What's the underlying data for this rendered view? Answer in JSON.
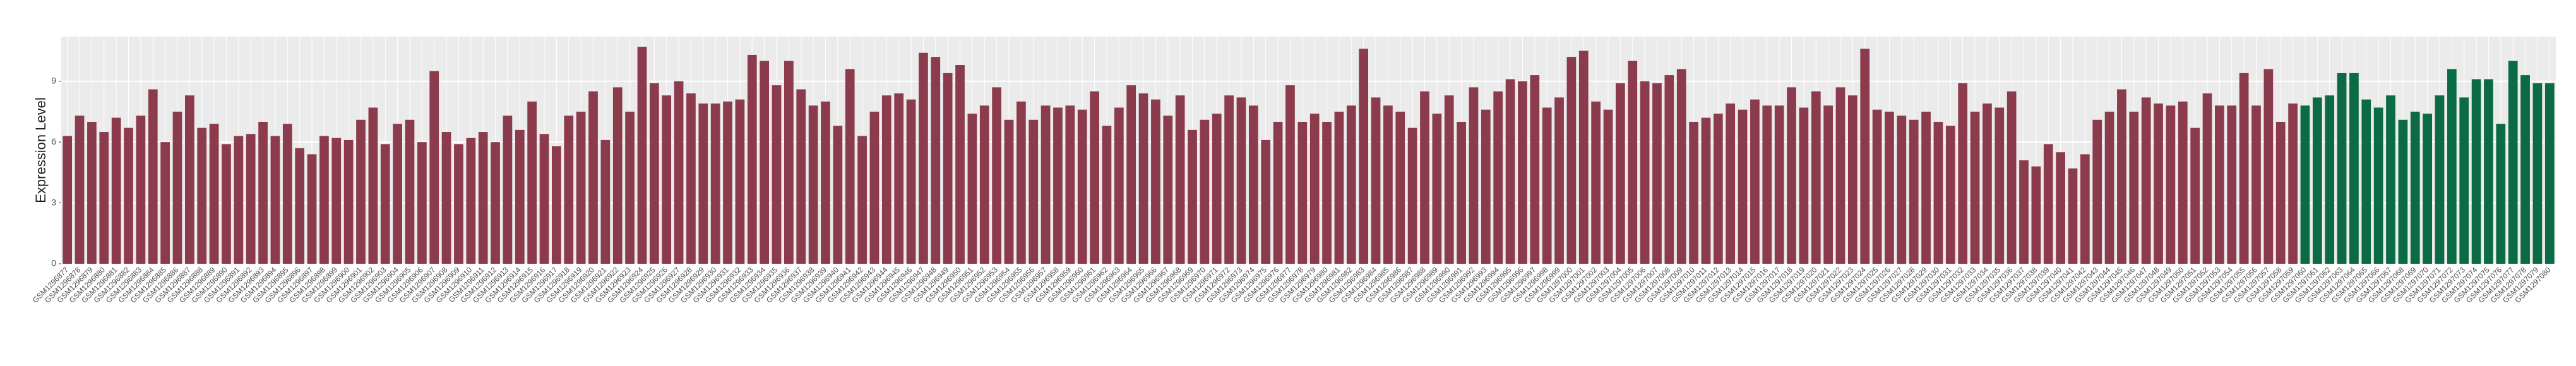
{
  "chart_data": {
    "type": "bar",
    "y_label": "Expression Level",
    "categories": [
      "GSM1296877",
      "GSM1296878",
      "GSM1296879",
      "GSM1296880",
      "GSM1296881",
      "GSM1296882",
      "GSM1296883",
      "GSM1296884",
      "GSM1296885",
      "GSM1296886",
      "GSM1296887",
      "GSM1296888",
      "GSM1296889",
      "GSM1296890",
      "GSM1296891",
      "GSM1296892",
      "GSM1296893",
      "GSM1296894",
      "GSM1296895",
      "GSM1296896",
      "GSM1296897",
      "GSM1296898",
      "GSM1296899",
      "GSM1296900",
      "GSM1296901",
      "GSM1296902",
      "GSM1296903",
      "GSM1296904",
      "GSM1296905",
      "GSM1296906",
      "GSM1296907",
      "GSM1296908",
      "GSM1296909",
      "GSM1296910",
      "GSM1296911",
      "GSM1296912",
      "GSM1296913",
      "GSM1296914",
      "GSM1296915",
      "GSM1296916",
      "GSM1296917",
      "GSM1296918",
      "GSM1296919",
      "GSM1296920",
      "GSM1296921",
      "GSM1296922",
      "GSM1296923",
      "GSM1296924",
      "GSM1296925",
      "GSM1296926",
      "GSM1296927",
      "GSM1296928",
      "GSM1296929",
      "GSM1296930",
      "GSM1296931",
      "GSM1296932",
      "GSM1296933",
      "GSM1296934",
      "GSM1296935",
      "GSM1296936",
      "GSM1296937",
      "GSM1296938",
      "GSM1296939",
      "GSM1296940",
      "GSM1296941",
      "GSM1296942",
      "GSM1296943",
      "GSM1296944",
      "GSM1296945",
      "GSM1296946",
      "GSM1296947",
      "GSM1296948",
      "GSM1296949",
      "GSM1296950",
      "GSM1296951",
      "GSM1296952",
      "GSM1296953",
      "GSM1296954",
      "GSM1296955",
      "GSM1296956",
      "GSM1296957",
      "GSM1296958",
      "GSM1296959",
      "GSM1296960",
      "GSM1296961",
      "GSM1296962",
      "GSM1296963",
      "GSM1296964",
      "GSM1296965",
      "GSM1296966",
      "GSM1296967",
      "GSM1296968",
      "GSM1296969",
      "GSM1296970",
      "GSM1296971",
      "GSM1296972",
      "GSM1296973",
      "GSM1296974",
      "GSM1296975",
      "GSM1296976",
      "GSM1296977",
      "GSM1296978",
      "GSM1296979",
      "GSM1296980",
      "GSM1296981",
      "GSM1296982",
      "GSM1296983",
      "GSM1296984",
      "GSM1296985",
      "GSM1296986",
      "GSM1296987",
      "GSM1296988",
      "GSM1296989",
      "GSM1296990",
      "GSM1296991",
      "GSM1296992",
      "GSM1296993",
      "GSM1296994",
      "GSM1296995",
      "GSM1296996",
      "GSM1296997",
      "GSM1296998",
      "GSM1296999",
      "GSM1297000",
      "GSM1297001",
      "GSM1297002",
      "GSM1297003",
      "GSM1297004",
      "GSM1297005",
      "GSM1297006",
      "GSM1297007",
      "GSM1297008",
      "GSM1297009",
      "GSM1297010",
      "GSM1297011",
      "GSM1297012",
      "GSM1297013",
      "GSM1297014",
      "GSM1297015",
      "GSM1297016",
      "GSM1297017",
      "GSM1297018",
      "GSM1297019",
      "GSM1297020",
      "GSM1297021",
      "GSM1297022",
      "GSM1297023",
      "GSM1297024",
      "GSM1297025",
      "GSM1297026",
      "GSM1297027",
      "GSM1297028",
      "GSM1297029",
      "GSM1297030",
      "GSM1297031",
      "GSM1297032",
      "GSM1297033",
      "GSM1297034",
      "GSM1297035",
      "GSM1297036",
      "GSM1297037",
      "GSM1297038",
      "GSM1297039",
      "GSM1297040",
      "GSM1297041",
      "GSM1297042",
      "GSM1297043",
      "GSM1297044",
      "GSM1297045",
      "GSM1297046",
      "GSM1297047",
      "GSM1297048",
      "GSM1297049",
      "GSM1297050",
      "GSM1297051",
      "GSM1297052",
      "GSM1297053",
      "GSM1297054",
      "GSM1297055",
      "GSM1297056",
      "GSM1297057",
      "GSM1297058",
      "GSM1297059",
      "GSM1297060",
      "GSM1297061",
      "GSM1297062",
      "GSM1297063",
      "GSM1297064",
      "GSM1297065",
      "GSM1297066",
      "GSM1297067",
      "GSM1297068",
      "GSM1297069",
      "GSM1297070",
      "GSM1297071",
      "GSM1297072",
      "GSM1297073",
      "GSM1297074",
      "GSM1297075",
      "GSM1297076",
      "GSM1297077",
      "GSM1297078",
      "GSM1297079",
      "GSM1297080"
    ],
    "values": [
      6.3,
      7.3,
      7.0,
      6.5,
      7.2,
      6.7,
      7.3,
      8.6,
      6.0,
      7.5,
      8.3,
      6.7,
      6.9,
      5.9,
      6.3,
      6.4,
      7.0,
      6.3,
      6.9,
      5.7,
      5.4,
      6.3,
      6.2,
      6.1,
      7.1,
      7.7,
      5.9,
      6.9,
      7.1,
      6.0,
      9.5,
      6.5,
      5.9,
      6.2,
      6.5,
      6.0,
      7.3,
      6.6,
      8.0,
      6.4,
      5.8,
      7.3,
      7.5,
      8.5,
      6.1,
      8.7,
      7.5,
      10.7,
      8.9,
      8.3,
      9.0,
      8.4,
      7.9,
      7.9,
      8.0,
      8.1,
      10.3,
      10.0,
      8.8,
      10.0,
      8.6,
      7.8,
      8.0,
      6.8,
      9.6,
      6.3,
      7.5,
      8.3,
      8.4,
      8.1,
      10.4,
      10.2,
      9.4,
      9.8,
      7.4,
      7.8,
      8.7,
      7.1,
      8.0,
      7.1,
      7.8,
      7.7,
      7.8,
      7.6,
      8.5,
      6.8,
      7.7,
      8.8,
      8.4,
      8.1,
      7.3,
      8.3,
      6.6,
      7.1,
      7.4,
      8.3,
      8.2,
      7.8,
      6.1,
      7.0,
      8.8,
      7.0,
      7.4,
      7.0,
      7.5,
      7.8,
      10.6,
      8.2,
      7.8,
      7.5,
      6.7,
      8.5,
      7.4,
      8.3,
      7.0,
      8.7,
      7.6,
      8.5,
      9.1,
      9.0,
      9.3,
      7.7,
      8.2,
      10.2,
      10.5,
      8.0,
      7.6,
      8.9,
      10.0,
      9.0,
      8.9,
      9.3,
      9.6,
      7.0,
      7.2,
      7.4,
      7.9,
      7.6,
      8.1,
      7.8,
      7.8,
      8.7,
      7.7,
      8.5,
      7.8,
      8.7,
      8.3,
      10.6,
      7.6,
      7.5,
      7.3,
      7.1,
      7.5,
      7.0,
      6.8,
      8.9,
      7.5,
      7.9,
      7.7,
      8.5,
      5.1,
      4.8,
      5.9,
      5.5,
      4.7,
      5.4,
      7.1,
      7.5,
      8.6,
      7.5,
      8.2,
      7.9,
      7.8,
      8.0,
      6.7,
      8.4,
      7.8,
      7.8,
      9.4,
      7.8,
      9.6,
      7.0,
      7.9,
      7.8,
      8.2,
      8.3,
      9.4,
      9.4,
      8.1,
      7.7,
      8.3,
      7.1,
      7.5,
      7.4,
      8.3,
      9.6,
      8.2,
      9.1,
      9.1,
      6.9,
      10.0,
      9.3,
      8.9,
      8.9
    ],
    "colors": [
      "#8c3b4c",
      "#8c3b4c",
      "#8c3b4c",
      "#8c3b4c",
      "#8c3b4c",
      "#8c3b4c",
      "#8c3b4c",
      "#8c3b4c",
      "#8c3b4c",
      "#8c3b4c",
      "#8c3b4c",
      "#8c3b4c",
      "#8c3b4c",
      "#8c3b4c",
      "#8c3b4c",
      "#8c3b4c",
      "#8c3b4c",
      "#8c3b4c",
      "#8c3b4c",
      "#8c3b4c",
      "#8c3b4c",
      "#8c3b4c",
      "#8c3b4c",
      "#8c3b4c",
      "#8c3b4c",
      "#8c3b4c",
      "#8c3b4c",
      "#8c3b4c",
      "#8c3b4c",
      "#8c3b4c",
      "#8c3b4c",
      "#8c3b4c",
      "#8c3b4c",
      "#8c3b4c",
      "#8c3b4c",
      "#8c3b4c",
      "#8c3b4c",
      "#8c3b4c",
      "#8c3b4c",
      "#8c3b4c",
      "#8c3b4c",
      "#8c3b4c",
      "#8c3b4c",
      "#8c3b4c",
      "#8c3b4c",
      "#8c3b4c",
      "#8c3b4c",
      "#8c3b4c",
      "#8c3b4c",
      "#8c3b4c",
      "#8c3b4c",
      "#8c3b4c",
      "#8c3b4c",
      "#8c3b4c",
      "#8c3b4c",
      "#8c3b4c",
      "#8c3b4c",
      "#8c3b4c",
      "#8c3b4c",
      "#8c3b4c",
      "#8c3b4c",
      "#8c3b4c",
      "#8c3b4c",
      "#8c3b4c",
      "#8c3b4c",
      "#8c3b4c",
      "#8c3b4c",
      "#8c3b4c",
      "#8c3b4c",
      "#8c3b4c",
      "#8c3b4c",
      "#8c3b4c",
      "#8c3b4c",
      "#8c3b4c",
      "#8c3b4c",
      "#8c3b4c",
      "#8c3b4c",
      "#8c3b4c",
      "#8c3b4c",
      "#8c3b4c",
      "#8c3b4c",
      "#8c3b4c",
      "#8c3b4c",
      "#8c3b4c",
      "#8c3b4c",
      "#8c3b4c",
      "#8c3b4c",
      "#8c3b4c",
      "#8c3b4c",
      "#8c3b4c",
      "#8c3b4c",
      "#8c3b4c",
      "#8c3b4c",
      "#8c3b4c",
      "#8c3b4c",
      "#8c3b4c",
      "#8c3b4c",
      "#8c3b4c",
      "#8c3b4c",
      "#8c3b4c",
      "#8c3b4c",
      "#8c3b4c",
      "#8c3b4c",
      "#8c3b4c",
      "#8c3b4c",
      "#8c3b4c",
      "#8c3b4c",
      "#8c3b4c",
      "#8c3b4c",
      "#8c3b4c",
      "#8c3b4c",
      "#8c3b4c",
      "#8c3b4c",
      "#8c3b4c",
      "#8c3b4c",
      "#8c3b4c",
      "#8c3b4c",
      "#8c3b4c",
      "#8c3b4c",
      "#8c3b4c",
      "#8c3b4c",
      "#8c3b4c",
      "#8c3b4c",
      "#8c3b4c",
      "#8c3b4c",
      "#8c3b4c",
      "#8c3b4c",
      "#8c3b4c",
      "#8c3b4c",
      "#8c3b4c",
      "#8c3b4c",
      "#8c3b4c",
      "#8c3b4c",
      "#8c3b4c",
      "#8c3b4c",
      "#8c3b4c",
      "#8c3b4c",
      "#8c3b4c",
      "#8c3b4c",
      "#8c3b4c",
      "#8c3b4c",
      "#8c3b4c",
      "#8c3b4c",
      "#8c3b4c",
      "#8c3b4c",
      "#8c3b4c",
      "#8c3b4c",
      "#8c3b4c",
      "#8c3b4c",
      "#8c3b4c",
      "#8c3b4c",
      "#8c3b4c",
      "#8c3b4c",
      "#8c3b4c",
      "#8c3b4c",
      "#8c3b4c",
      "#8c3b4c",
      "#8c3b4c",
      "#8c3b4c",
      "#8c3b4c",
      "#8c3b4c",
      "#8c3b4c",
      "#8c3b4c",
      "#8c3b4c",
      "#8c3b4c",
      "#8c3b4c",
      "#8c3b4c",
      "#8c3b4c",
      "#8c3b4c",
      "#8c3b4c",
      "#8c3b4c",
      "#8c3b4c",
      "#8c3b4c",
      "#8c3b4c",
      "#8c3b4c",
      "#8c3b4c",
      "#8c3b4c",
      "#8c3b4c",
      "#8c3b4c",
      "#8c3b4c",
      "#8c3b4c",
      "#8c3b4c",
      "#8c3b4c",
      "#0b6b45",
      "#0b6b45",
      "#0b6b45",
      "#0b6b45",
      "#0b6b45",
      "#0b6b45",
      "#0b6b45",
      "#0b6b45",
      "#0b6b45",
      "#0b6b45",
      "#0b6b45",
      "#0b6b45",
      "#0b6b45",
      "#0b6b45",
      "#0b6b45",
      "#0b6b45",
      "#0b6b45",
      "#0b6b45",
      "#0b6b45",
      "#0b6b45",
      "#0b6b45"
    ],
    "ylim": [
      0,
      11.2
    ],
    "yticks": [
      0,
      3,
      6,
      9
    ],
    "grid": true
  }
}
